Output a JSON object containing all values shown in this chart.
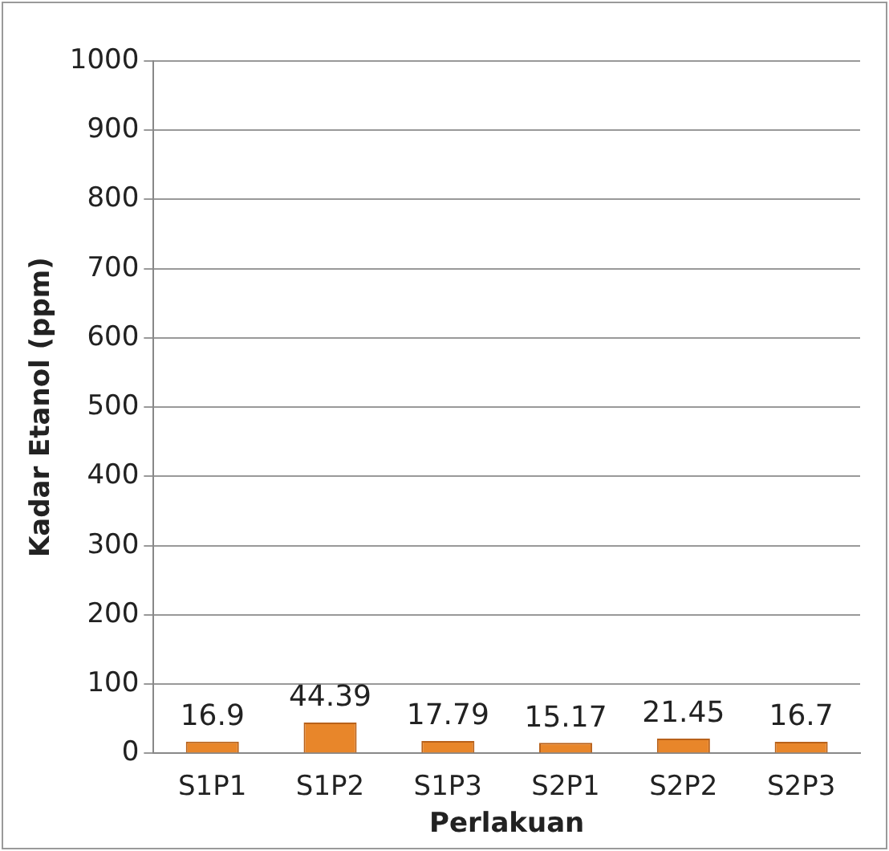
{
  "chart_data": {
    "type": "bar",
    "xlabel": "Perlakuan",
    "ylabel": "Kadar Etanol (ppm)",
    "categories": [
      "S1P1",
      "S1P2",
      "S1P3",
      "S2P1",
      "S2P2",
      "S2P3"
    ],
    "values": [
      16.9,
      44.39,
      17.79,
      15.17,
      21.45,
      16.7
    ],
    "color": "#e8862a",
    "ylim": [
      0,
      1000
    ],
    "yticks": [
      0,
      100,
      200,
      300,
      400,
      500,
      600,
      700,
      800,
      900,
      1000
    ],
    "grid": "y",
    "data_labels": true
  }
}
